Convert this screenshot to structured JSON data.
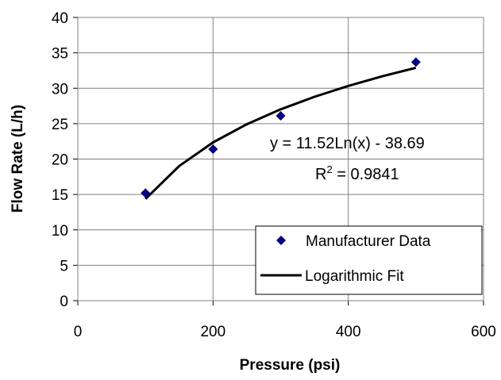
{
  "chart_data": {
    "type": "scatter",
    "xlabel": "Pressure (psi)",
    "ylabel": "Flow Rate (L/h)",
    "xlim": [
      0,
      600
    ],
    "ylim": [
      0,
      40
    ],
    "x_ticks": [
      0,
      200,
      400,
      600
    ],
    "y_ticks": [
      0,
      5,
      10,
      15,
      20,
      25,
      30,
      35,
      40
    ],
    "grid": true,
    "legend_position": "bottom-right",
    "series": [
      {
        "name": "Manufacturer Data",
        "type": "scatter",
        "marker": "diamond",
        "color": "#000080",
        "x": [
          100,
          200,
          300,
          500
        ],
        "y": [
          15.2,
          21.4,
          26.1,
          33.7
        ]
      },
      {
        "name": "Logarithmic Fit",
        "type": "line",
        "color": "#000000",
        "x": [
          100,
          150,
          200,
          250,
          300,
          350,
          400,
          450,
          500
        ],
        "y": [
          14.36,
          19.03,
          22.35,
          24.92,
          27.02,
          28.8,
          30.33,
          31.69,
          32.9
        ]
      }
    ],
    "annotations": {
      "equation": "y = 11.52Ln(x) - 38.69",
      "r2_prefix": "R",
      "r2_sup": "2",
      "r2_suffix": " = 0.9841"
    }
  }
}
